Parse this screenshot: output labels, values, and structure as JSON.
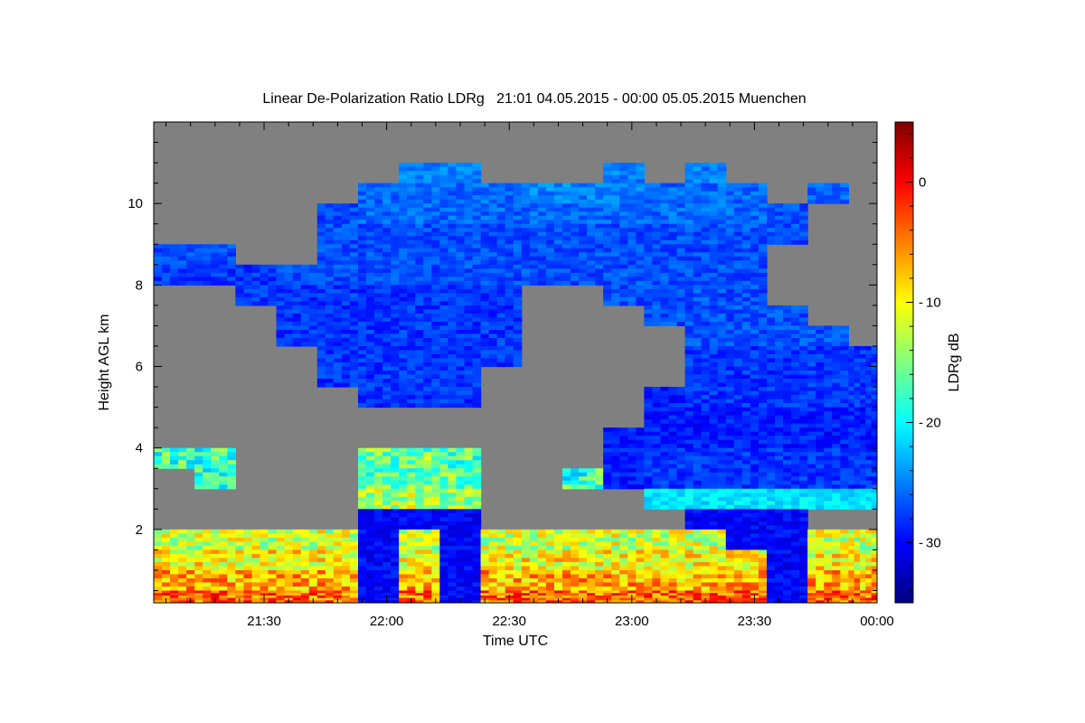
{
  "chart_data": {
    "type": "heatmap",
    "title": "Linear De-Polarization Ratio LDRg   21:01 04.05.2015 - 00:00 05.05.2015 Muenchen",
    "xlabel": "Time UTC",
    "ylabel": "Height AGL km",
    "colorbar_label": "LDRg dB",
    "x_units": "minutes after 21:00 UTC",
    "xlim": [
      3,
      180
    ],
    "ylim": [
      0.2,
      12
    ],
    "clim": [
      -35,
      5
    ],
    "colormap": "jet",
    "no_data_color": "#808080",
    "x_ticks": [
      {
        "value": 30,
        "label": "21:30"
      },
      {
        "value": 60,
        "label": "22:00"
      },
      {
        "value": 90,
        "label": "22:30"
      },
      {
        "value": 120,
        "label": "23:00"
      },
      {
        "value": 150,
        "label": "23:30"
      },
      {
        "value": 180,
        "label": "00:00"
      }
    ],
    "y_ticks": [
      {
        "value": 2,
        "label": "2"
      },
      {
        "value": 4,
        "label": "4"
      },
      {
        "value": 6,
        "label": "6"
      },
      {
        "value": 8,
        "label": "8"
      },
      {
        "value": 10,
        "label": "10"
      }
    ],
    "c_ticks": [
      {
        "value": 0,
        "label": "0"
      },
      {
        "value": -10,
        "label": "-10"
      },
      {
        "value": -20,
        "label": "-20"
      },
      {
        "value": -30,
        "label": "-30"
      }
    ],
    "grid_x_start_min": 3,
    "grid_x_step_min": 10,
    "grid_y_top_km": 12,
    "grid_y_step_km": 0.5,
    "grid_rows_top_to_bottom": [
      [
        null,
        null,
        null,
        null,
        null,
        null,
        null,
        null,
        null,
        null,
        null,
        null,
        null,
        null,
        null,
        null,
        null,
        null
      ],
      [
        null,
        null,
        null,
        null,
        null,
        null,
        null,
        null,
        null,
        null,
        null,
        null,
        null,
        null,
        null,
        null,
        null,
        null
      ],
      [
        null,
        null,
        null,
        null,
        null,
        null,
        -25,
        -25,
        null,
        null,
        null,
        -25,
        null,
        -25,
        null,
        null,
        null,
        null
      ],
      [
        null,
        null,
        null,
        null,
        null,
        -26,
        -26,
        -26,
        -26,
        -25,
        -25,
        -25,
        -26,
        -26,
        -26,
        null,
        -26,
        null
      ],
      [
        null,
        null,
        null,
        null,
        -27,
        -26,
        -26,
        -26,
        -26,
        -26,
        -26,
        -26,
        -26,
        -26,
        -26,
        -27,
        null,
        null
      ],
      [
        null,
        null,
        null,
        null,
        -27,
        -27,
        -27,
        -27,
        -27,
        -27,
        -27,
        -27,
        -27,
        -27,
        -27,
        -27,
        null,
        null
      ],
      [
        -27,
        -27,
        null,
        null,
        -27,
        -27,
        -27,
        -27,
        -27,
        -27,
        -27,
        -27,
        -27,
        -27,
        -27,
        null,
        null,
        null
      ],
      [
        -28,
        -28,
        -28,
        -27,
        -27,
        -27,
        -27,
        -27,
        -27,
        -27,
        -27,
        -27,
        -27,
        -27,
        -27,
        null,
        null,
        null
      ],
      [
        null,
        null,
        -28,
        -28,
        -28,
        -28,
        -28,
        -28,
        -28,
        null,
        null,
        -27,
        -27,
        -27,
        -27,
        null,
        null,
        null
      ],
      [
        null,
        null,
        null,
        -28,
        -28,
        -28,
        -28,
        -28,
        -28,
        null,
        null,
        null,
        -27,
        -27,
        -27,
        -27,
        null,
        null
      ],
      [
        null,
        null,
        null,
        -28,
        -28,
        -28,
        -28,
        -28,
        -28,
        null,
        null,
        null,
        null,
        -27,
        -27,
        -27,
        -27,
        null
      ],
      [
        null,
        null,
        null,
        null,
        -28,
        -28,
        -28,
        -28,
        -28,
        null,
        null,
        null,
        null,
        -28,
        -28,
        -28,
        -28,
        -28
      ],
      [
        null,
        null,
        null,
        null,
        -28,
        -28,
        -28,
        -28,
        null,
        null,
        null,
        null,
        null,
        -28,
        -28,
        -28,
        -28,
        -28
      ],
      [
        null,
        null,
        null,
        null,
        null,
        -28,
        -28,
        -28,
        null,
        null,
        null,
        null,
        -29,
        -28,
        -28,
        -28,
        -28,
        -28
      ],
      [
        null,
        null,
        null,
        null,
        null,
        null,
        null,
        null,
        null,
        null,
        null,
        null,
        -29,
        -29,
        -29,
        -29,
        -29,
        -29
      ],
      [
        null,
        null,
        null,
        null,
        null,
        null,
        null,
        null,
        null,
        null,
        null,
        -29,
        -29,
        -29,
        -29,
        -29,
        -29,
        -29
      ],
      [
        -18,
        -18,
        null,
        null,
        null,
        -16,
        -16,
        -17,
        null,
        null,
        null,
        -29,
        -28,
        -28,
        -28,
        -28,
        -28,
        -28
      ],
      [
        null,
        -18,
        null,
        null,
        null,
        -16,
        -16,
        -16,
        null,
        null,
        -18,
        -29,
        -28,
        -28,
        -28,
        -28,
        -28,
        -28
      ],
      [
        null,
        null,
        null,
        null,
        null,
        -13,
        -13,
        -14,
        null,
        null,
        null,
        null,
        -21,
        -21,
        -21,
        -21,
        -21,
        -21
      ],
      [
        null,
        null,
        null,
        null,
        null,
        -30,
        -30,
        -30,
        null,
        null,
        null,
        null,
        null,
        -30,
        -30,
        -30,
        null,
        null
      ],
      [
        -12,
        -12,
        -12,
        -12,
        -12,
        -30,
        -12,
        -30,
        -12,
        -12,
        -12,
        -12,
        -12,
        -12,
        -30,
        -30,
        -12,
        -12
      ],
      [
        -10,
        -10,
        -10,
        -10,
        -10,
        -30,
        -10,
        -30,
        -10,
        -10,
        -10,
        -10,
        -10,
        -10,
        -10,
        -30,
        -10,
        -10
      ],
      [
        -7,
        -7,
        -7,
        -7,
        -7,
        -30,
        -7,
        -30,
        -7,
        -7,
        -7,
        -7,
        -7,
        -7,
        -7,
        -30,
        -7,
        -7
      ],
      [
        -4,
        -4,
        -4,
        -4,
        -4,
        -30,
        -4,
        -30,
        -4,
        -4,
        -4,
        -4,
        -4,
        -4,
        -4,
        -30,
        -4,
        -4
      ]
    ]
  }
}
